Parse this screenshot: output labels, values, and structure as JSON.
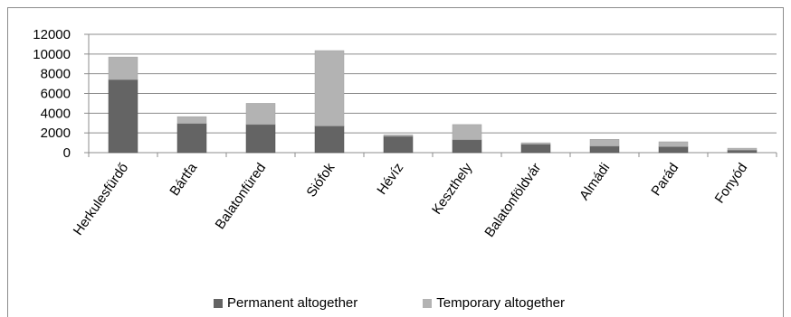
{
  "chart_data": {
    "type": "bar",
    "stacked": true,
    "categories": [
      "Herkulesfürdő",
      "Bártfa",
      "Balatonfüred",
      "Siófok",
      "Hévíz",
      "Keszthely",
      "Balatonföldvár",
      "Almádi",
      "Parád",
      "Fonyód"
    ],
    "series": [
      {
        "name": "Permanent altogether",
        "color": "#646464",
        "values": [
          7400,
          2950,
          2850,
          2700,
          1650,
          1300,
          850,
          650,
          600,
          250
        ]
      },
      {
        "name": "Temporary altogether",
        "color": "#b3b3b3",
        "values": [
          2300,
          700,
          2150,
          7650,
          150,
          1550,
          150,
          700,
          500,
          200
        ]
      }
    ],
    "yticks": [
      0,
      2000,
      4000,
      6000,
      8000,
      10000,
      12000
    ],
    "ylim": [
      0,
      12000
    ],
    "grid": true,
    "legend_position": "bottom",
    "title": "",
    "xlabel": "",
    "ylabel": ""
  }
}
